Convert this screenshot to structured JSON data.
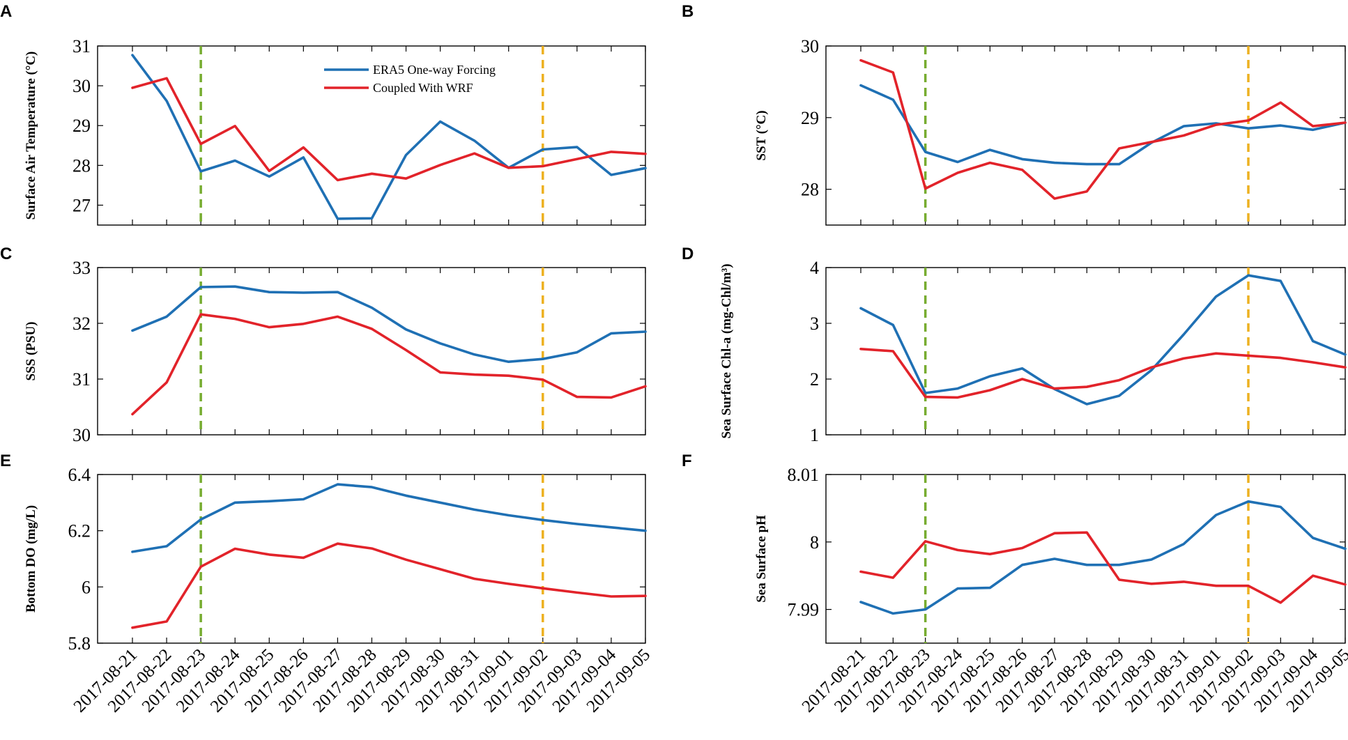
{
  "figure": {
    "dates": [
      "2017-08-21",
      "2017-08-22",
      "2017-08-23",
      "2017-08-24",
      "2017-08-25",
      "2017-08-26",
      "2017-08-27",
      "2017-08-28",
      "2017-08-29",
      "2017-08-30",
      "2017-08-31",
      "2017-09-01",
      "2017-09-02",
      "2017-09-03",
      "2017-09-04",
      "2017-09-05"
    ],
    "series_names": [
      "ERA5 One-way Forcing",
      "Coupled With WRF"
    ],
    "colors": {
      "era5": "#1f70b4",
      "coupled": "#e2232a",
      "event_start": "#77ac30",
      "event_end": "#edb120",
      "axis": "#000000"
    },
    "event_lines": {
      "start_index": 2,
      "end_index": 12
    }
  },
  "chart_data": [
    {
      "id": "A",
      "type": "line",
      "ylabel": "Surface Air Temperature (°C)",
      "ylim": [
        26.5,
        31
      ],
      "yticks": [
        27,
        28,
        29,
        30,
        31
      ],
      "ytick_labels": [
        "27",
        "28",
        "29",
        "30",
        "31"
      ],
      "legend": true,
      "legend_position": "top-center",
      "series": [
        {
          "name": "ERA5 One-way Forcing",
          "values": [
            30.77,
            29.62,
            27.85,
            28.12,
            27.72,
            28.2,
            26.66,
            26.67,
            28.26,
            29.1,
            28.62,
            27.94,
            28.4,
            28.46,
            27.76,
            27.93
          ]
        },
        {
          "name": "Coupled With WRF",
          "values": [
            29.95,
            30.19,
            28.54,
            28.99,
            27.86,
            28.45,
            27.63,
            27.79,
            27.67,
            28.01,
            28.3,
            27.94,
            27.98,
            28.16,
            28.34,
            28.29
          ]
        }
      ]
    },
    {
      "id": "B",
      "type": "line",
      "ylabel": "SST (°C)",
      "ylim": [
        27.5,
        30
      ],
      "yticks": [
        28,
        29,
        30
      ],
      "ytick_labels": [
        "28",
        "29",
        "30"
      ],
      "legend": false,
      "series": [
        {
          "name": "ERA5 One-way Forcing",
          "values": [
            29.45,
            29.25,
            28.52,
            28.38,
            28.55,
            28.42,
            28.37,
            28.35,
            28.35,
            28.65,
            28.88,
            28.92,
            28.85,
            28.89,
            28.83,
            28.93
          ]
        },
        {
          "name": "Coupled With WRF",
          "values": [
            29.8,
            29.63,
            28.01,
            28.23,
            28.37,
            28.27,
            27.87,
            27.97,
            28.57,
            28.66,
            28.75,
            28.9,
            28.96,
            29.21,
            28.88,
            28.93
          ]
        }
      ]
    },
    {
      "id": "C",
      "type": "line",
      "ylabel": "SSS (PSU)",
      "ylim": [
        30,
        33
      ],
      "yticks": [
        30,
        31,
        32,
        33
      ],
      "ytick_labels": [
        "30",
        "31",
        "32",
        "33"
      ],
      "legend": false,
      "series": [
        {
          "name": "ERA5 One-way Forcing",
          "values": [
            31.87,
            32.12,
            32.65,
            32.66,
            32.56,
            32.55,
            32.56,
            32.28,
            31.89,
            31.64,
            31.44,
            31.31,
            31.36,
            31.48,
            31.82,
            31.85
          ]
        },
        {
          "name": "Coupled With WRF",
          "values": [
            30.37,
            30.94,
            32.16,
            32.08,
            31.93,
            31.99,
            32.12,
            31.9,
            31.52,
            31.12,
            31.08,
            31.06,
            30.99,
            30.68,
            30.67,
            30.87
          ]
        }
      ]
    },
    {
      "id": "D",
      "type": "line",
      "ylabel": "Sea Surface Chl-a (mg-Chl/m³)",
      "ylim": [
        1,
        4
      ],
      "yticks": [
        1,
        2,
        3,
        4
      ],
      "ytick_labels": [
        "1",
        "2",
        "3",
        "4"
      ],
      "legend": false,
      "series": [
        {
          "name": "ERA5 One-way Forcing",
          "values": [
            3.27,
            2.97,
            1.75,
            1.83,
            2.05,
            2.19,
            1.82,
            1.55,
            1.7,
            2.16,
            2.8,
            3.48,
            3.86,
            3.76,
            2.68,
            2.44
          ]
        },
        {
          "name": "Coupled With WRF",
          "values": [
            2.54,
            2.5,
            1.68,
            1.67,
            1.8,
            2.0,
            1.83,
            1.86,
            1.98,
            2.21,
            2.37,
            2.46,
            2.42,
            2.38,
            2.3,
            2.21
          ]
        }
      ]
    },
    {
      "id": "E",
      "type": "line",
      "ylabel": "Bottom DO (mg/L)",
      "ylim": [
        5.8,
        6.4
      ],
      "yticks": [
        5.8,
        6,
        6.2,
        6.4
      ],
      "ytick_labels": [
        "5.8",
        "6",
        "6.2",
        "6.4"
      ],
      "legend": false,
      "series": [
        {
          "name": "ERA5 One-way Forcing",
          "values": [
            6.125,
            6.145,
            6.24,
            6.3,
            6.305,
            6.312,
            6.365,
            6.355,
            6.325,
            6.3,
            6.275,
            6.255,
            6.238,
            6.224,
            6.212,
            6.2
          ]
        },
        {
          "name": "Coupled With WRF",
          "values": [
            5.855,
            5.877,
            6.072,
            6.136,
            6.115,
            6.104,
            6.154,
            6.137,
            6.097,
            6.063,
            6.029,
            6.011,
            5.995,
            5.98,
            5.966,
            5.968
          ]
        }
      ]
    },
    {
      "id": "F",
      "type": "line",
      "ylabel": "Sea Surface pH",
      "ylim": [
        7.985,
        8.01
      ],
      "yticks": [
        7.99,
        8,
        8.01
      ],
      "ytick_labels": [
        "7.99",
        "8",
        "8.01"
      ],
      "legend": false,
      "series": [
        {
          "name": "ERA5 One-way Forcing",
          "values": [
            7.9911,
            7.9894,
            7.99,
            7.9931,
            7.9932,
            7.9966,
            7.9975,
            7.9966,
            7.9966,
            7.9974,
            7.9997,
            8.004,
            8.006,
            8.0052,
            8.0006,
            7.999
          ]
        },
        {
          "name": "Coupled With WRF",
          "values": [
            7.9956,
            7.9947,
            8.0001,
            7.9988,
            7.9982,
            7.9991,
            8.0013,
            8.0014,
            7.9944,
            7.9938,
            7.9941,
            7.9935,
            7.9935,
            7.991,
            7.995,
            7.9937
          ]
        }
      ]
    }
  ]
}
